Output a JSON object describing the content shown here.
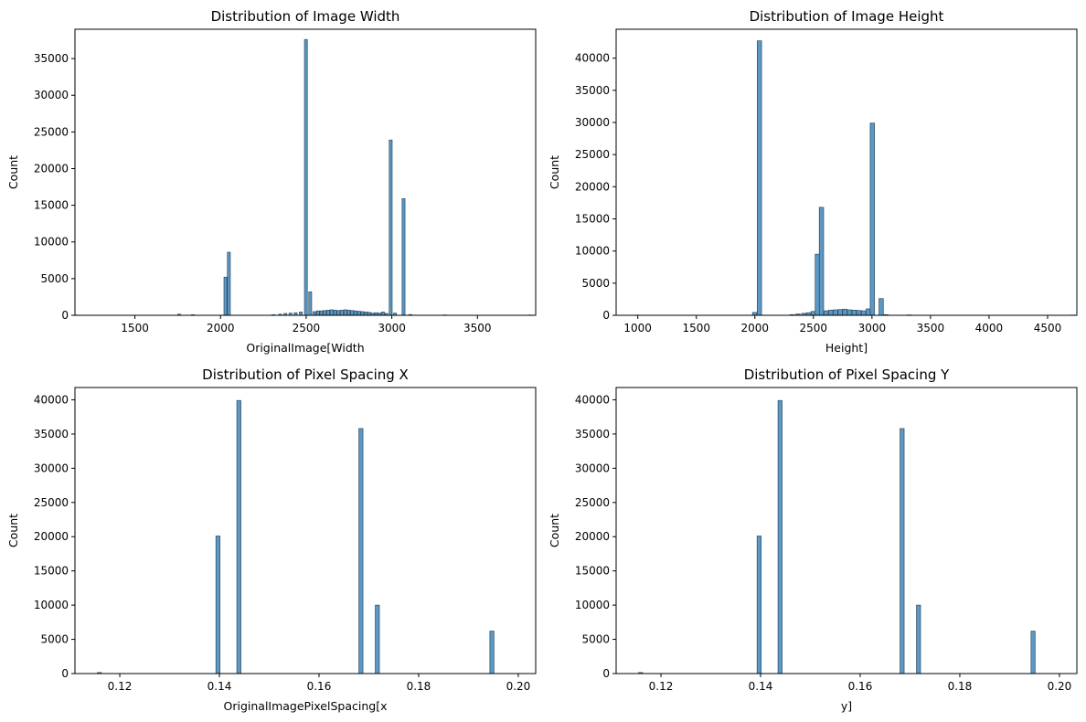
{
  "chart_data": [
    {
      "type": "bar",
      "title": "Distribution of Image Width",
      "xlabel": "OriginalImage[Width",
      "ylabel": "Count",
      "xlim": [
        1150,
        3840
      ],
      "ylim": [
        0,
        39000
      ],
      "xticks": [
        1500,
        2000,
        2500,
        3000,
        3500
      ],
      "yticks": [
        0,
        5000,
        10000,
        15000,
        20000,
        25000,
        30000,
        35000
      ],
      "bin_width": 17,
      "bins": [
        [
          1150,
          40
        ],
        [
          1750,
          150
        ],
        [
          1830,
          80
        ],
        [
          2020,
          5200
        ],
        [
          2040,
          8600
        ],
        [
          2300,
          80
        ],
        [
          2340,
          150
        ],
        [
          2370,
          250
        ],
        [
          2400,
          300
        ],
        [
          2430,
          350
        ],
        [
          2460,
          450
        ],
        [
          2490,
          37600
        ],
        [
          2515,
          3200
        ],
        [
          2540,
          500
        ],
        [
          2560,
          600
        ],
        [
          2580,
          600
        ],
        [
          2600,
          650
        ],
        [
          2620,
          700
        ],
        [
          2640,
          750
        ],
        [
          2660,
          700
        ],
        [
          2680,
          650
        ],
        [
          2700,
          700
        ],
        [
          2720,
          750
        ],
        [
          2740,
          700
        ],
        [
          2760,
          650
        ],
        [
          2780,
          600
        ],
        [
          2800,
          550
        ],
        [
          2820,
          500
        ],
        [
          2840,
          450
        ],
        [
          2860,
          400
        ],
        [
          2880,
          300
        ],
        [
          2900,
          350
        ],
        [
          2920,
          300
        ],
        [
          2940,
          450
        ],
        [
          2960,
          250
        ],
        [
          2985,
          23900
        ],
        [
          3010,
          300
        ],
        [
          3060,
          15900
        ],
        [
          3100,
          100
        ],
        [
          3300,
          50
        ],
        [
          3800,
          40
        ]
      ]
    },
    {
      "type": "bar",
      "title": "Distribution of Image Height",
      "xlabel": "Height]",
      "ylabel": "Count",
      "xlim": [
        815,
        4750
      ],
      "ylim": [
        0,
        44500
      ],
      "xticks": [
        1000,
        1500,
        2000,
        2500,
        3000,
        3500,
        4000,
        4500
      ],
      "yticks": [
        0,
        5000,
        10000,
        15000,
        20000,
        25000,
        30000,
        35000,
        40000
      ],
      "bin_width": 37,
      "bins": [
        [
          970,
          40
        ],
        [
          1980,
          450
        ],
        [
          2020,
          42700
        ],
        [
          2300,
          100
        ],
        [
          2350,
          200
        ],
        [
          2400,
          300
        ],
        [
          2440,
          400
        ],
        [
          2480,
          600
        ],
        [
          2515,
          9500
        ],
        [
          2550,
          16800
        ],
        [
          2590,
          700
        ],
        [
          2630,
          800
        ],
        [
          2670,
          850
        ],
        [
          2710,
          900
        ],
        [
          2750,
          950
        ],
        [
          2790,
          850
        ],
        [
          2830,
          800
        ],
        [
          2870,
          750
        ],
        [
          2910,
          700
        ],
        [
          2950,
          1000
        ],
        [
          2985,
          29900
        ],
        [
          3060,
          2600
        ],
        [
          3100,
          100
        ],
        [
          3300,
          60
        ],
        [
          4700,
          40
        ]
      ]
    },
    {
      "type": "bar",
      "title": "Distribution of Pixel Spacing X",
      "xlabel": "OriginalImagePixelSpacing[x",
      "ylabel": "Count",
      "xlim": [
        0.111,
        0.2035
      ],
      "ylim": [
        0,
        41800
      ],
      "xticks": [
        0.12,
        0.14,
        0.16,
        0.18,
        0.2
      ],
      "xtick_labels": [
        "0.12",
        "0.14",
        "0.16",
        "0.18",
        "0.20"
      ],
      "yticks": [
        0,
        5000,
        10000,
        15000,
        20000,
        25000,
        30000,
        35000,
        40000
      ],
      "bin_width": 0.00082,
      "bins": [
        [
          0.1155,
          150
        ],
        [
          0.1393,
          20100
        ],
        [
          0.1435,
          39900
        ],
        [
          0.168,
          35800
        ],
        [
          0.1713,
          10000
        ],
        [
          0.1943,
          6200
        ]
      ]
    },
    {
      "type": "bar",
      "title": "Distribution of Pixel Spacing Y",
      "xlabel": "y]",
      "ylabel": "Count",
      "xlim": [
        0.111,
        0.2035
      ],
      "ylim": [
        0,
        41800
      ],
      "xticks": [
        0.12,
        0.14,
        0.16,
        0.18,
        0.2
      ],
      "xtick_labels": [
        "0.12",
        "0.14",
        "0.16",
        "0.18",
        "0.20"
      ],
      "yticks": [
        0,
        5000,
        10000,
        15000,
        20000,
        25000,
        30000,
        35000,
        40000
      ],
      "bin_width": 0.00082,
      "bins": [
        [
          0.1155,
          150
        ],
        [
          0.1393,
          20100
        ],
        [
          0.1435,
          39900
        ],
        [
          0.168,
          35800
        ],
        [
          0.1713,
          10000
        ],
        [
          0.1943,
          6200
        ]
      ]
    }
  ]
}
